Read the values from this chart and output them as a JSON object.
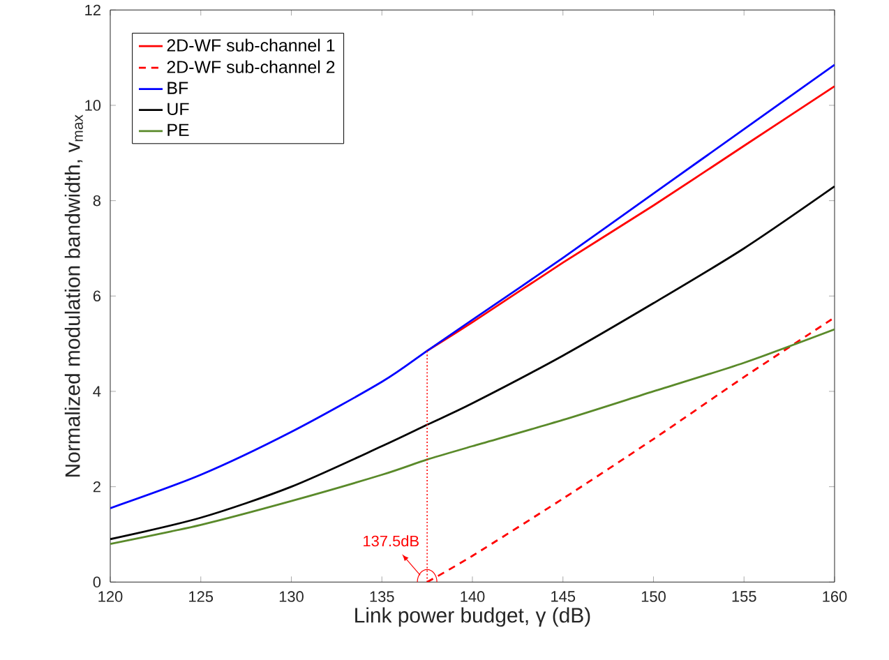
{
  "chart_data": {
    "type": "line",
    "xlabel": "Link power budget, γ (dB)",
    "ylabel": "Normalized modulation bandwidth, v$_{max}$",
    "xlim": [
      120,
      160
    ],
    "ylim": [
      0,
      12
    ],
    "xticks": [
      120,
      125,
      130,
      135,
      140,
      145,
      150,
      155,
      160
    ],
    "yticks": [
      0,
      2,
      4,
      6,
      8,
      10,
      12
    ],
    "grid": false,
    "legend": "top left",
    "marker": "none",
    "annotations": [
      {
        "text": "137.5dB",
        "x": 137.5,
        "y": 0
      }
    ],
    "series": [
      {
        "name": "2D-WF sub-channel 1",
        "color": "#ff0000",
        "line_style": "solid",
        "x": [
          137.5,
          140,
          145,
          150,
          155,
          160
        ],
        "values": [
          4.85,
          5.45,
          6.7,
          7.9,
          9.15,
          10.4
        ]
      },
      {
        "name": "2D-WF sub-channel 2",
        "color": "#ff0000",
        "line_style": "dashed",
        "x": [
          137.5,
          140,
          145,
          150,
          155,
          160
        ],
        "values": [
          0,
          0.55,
          1.75,
          3.0,
          4.3,
          5.55
        ]
      },
      {
        "name": "BF",
        "color": "#0000ff",
        "line_style": "solid",
        "x": [
          120,
          125,
          130,
          135,
          137.5,
          140,
          145,
          150,
          155,
          160
        ],
        "values": [
          1.55,
          2.25,
          3.15,
          4.2,
          4.85,
          5.5,
          6.8,
          8.15,
          9.5,
          10.85
        ]
      },
      {
        "name": "UF",
        "color": "#000000",
        "line_style": "solid",
        "x": [
          120,
          125,
          130,
          135,
          137.5,
          140,
          145,
          150,
          155,
          160
        ],
        "values": [
          0.9,
          1.35,
          2.0,
          2.85,
          3.3,
          3.75,
          4.75,
          5.85,
          7.0,
          8.3
        ]
      },
      {
        "name": "PE",
        "color": "#5a8a2a",
        "line_style": "solid",
        "x": [
          120,
          125,
          130,
          135,
          137.5,
          140,
          145,
          150,
          155,
          160
        ],
        "values": [
          0.8,
          1.2,
          1.7,
          2.25,
          2.57,
          2.85,
          3.4,
          4.0,
          4.6,
          5.3
        ]
      },
      {
        "color": "#ff0000",
        "line_style": "dotted",
        "x": [
          137.5,
          137.5
        ],
        "values": [
          0,
          4.85
        ]
      }
    ]
  }
}
